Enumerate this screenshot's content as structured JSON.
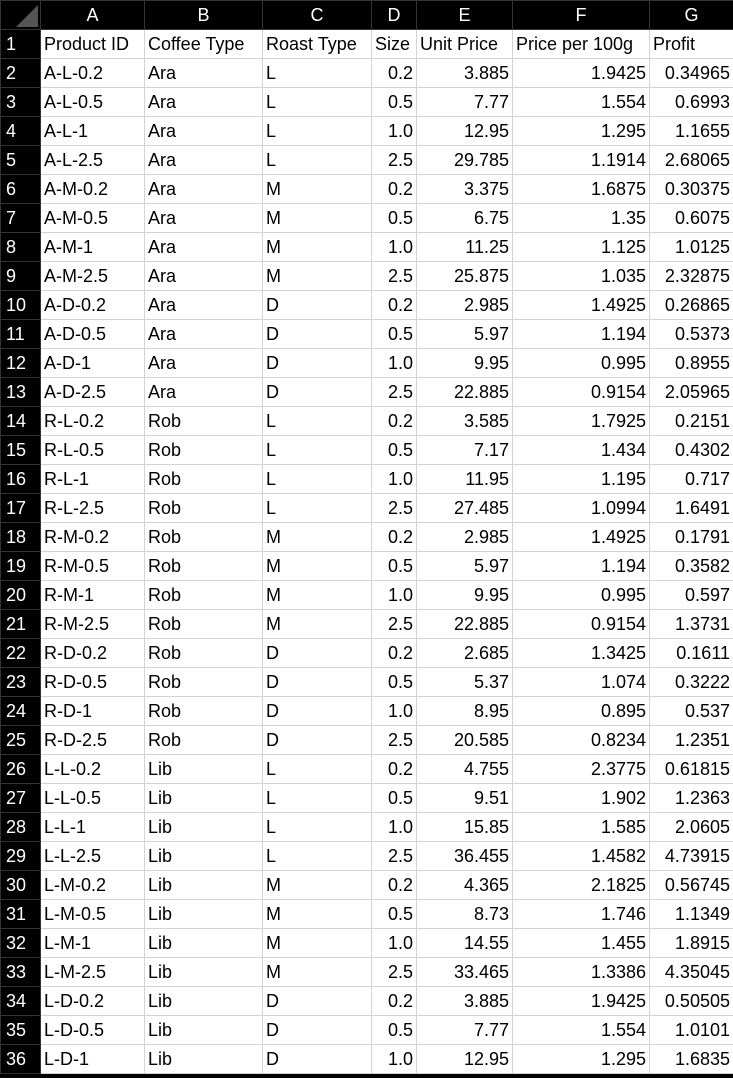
{
  "columns": [
    "A",
    "B",
    "C",
    "D",
    "E",
    "F",
    "G"
  ],
  "rows": [
    [
      "Product ID",
      "Coffee Type",
      "Roast Type",
      "Size",
      "Unit Price",
      "Price per 100g",
      "Profit"
    ],
    [
      "A-L-0.2",
      "Ara",
      "L",
      "0.2",
      "3.885",
      "1.9425",
      "0.34965"
    ],
    [
      "A-L-0.5",
      "Ara",
      "L",
      "0.5",
      "7.77",
      "1.554",
      "0.6993"
    ],
    [
      "A-L-1",
      "Ara",
      "L",
      "1.0",
      "12.95",
      "1.295",
      "1.1655"
    ],
    [
      "A-L-2.5",
      "Ara",
      "L",
      "2.5",
      "29.785",
      "1.1914",
      "2.68065"
    ],
    [
      "A-M-0.2",
      "Ara",
      "M",
      "0.2",
      "3.375",
      "1.6875",
      "0.30375"
    ],
    [
      "A-M-0.5",
      "Ara",
      "M",
      "0.5",
      "6.75",
      "1.35",
      "0.6075"
    ],
    [
      "A-M-1",
      "Ara",
      "M",
      "1.0",
      "11.25",
      "1.125",
      "1.0125"
    ],
    [
      "A-M-2.5",
      "Ara",
      "M",
      "2.5",
      "25.875",
      "1.035",
      "2.32875"
    ],
    [
      "A-D-0.2",
      "Ara",
      "D",
      "0.2",
      "2.985",
      "1.4925",
      "0.26865"
    ],
    [
      "A-D-0.5",
      "Ara",
      "D",
      "0.5",
      "5.97",
      "1.194",
      "0.5373"
    ],
    [
      "A-D-1",
      "Ara",
      "D",
      "1.0",
      "9.95",
      "0.995",
      "0.8955"
    ],
    [
      "A-D-2.5",
      "Ara",
      "D",
      "2.5",
      "22.885",
      "0.9154",
      "2.05965"
    ],
    [
      "R-L-0.2",
      "Rob",
      "L",
      "0.2",
      "3.585",
      "1.7925",
      "0.2151"
    ],
    [
      "R-L-0.5",
      "Rob",
      "L",
      "0.5",
      "7.17",
      "1.434",
      "0.4302"
    ],
    [
      "R-L-1",
      "Rob",
      "L",
      "1.0",
      "11.95",
      "1.195",
      "0.717"
    ],
    [
      "R-L-2.5",
      "Rob",
      "L",
      "2.5",
      "27.485",
      "1.0994",
      "1.6491"
    ],
    [
      "R-M-0.2",
      "Rob",
      "M",
      "0.2",
      "2.985",
      "1.4925",
      "0.1791"
    ],
    [
      "R-M-0.5",
      "Rob",
      "M",
      "0.5",
      "5.97",
      "1.194",
      "0.3582"
    ],
    [
      "R-M-1",
      "Rob",
      "M",
      "1.0",
      "9.95",
      "0.995",
      "0.597"
    ],
    [
      "R-M-2.5",
      "Rob",
      "M",
      "2.5",
      "22.885",
      "0.9154",
      "1.3731"
    ],
    [
      "R-D-0.2",
      "Rob",
      "D",
      "0.2",
      "2.685",
      "1.3425",
      "0.1611"
    ],
    [
      "R-D-0.5",
      "Rob",
      "D",
      "0.5",
      "5.37",
      "1.074",
      "0.3222"
    ],
    [
      "R-D-1",
      "Rob",
      "D",
      "1.0",
      "8.95",
      "0.895",
      "0.537"
    ],
    [
      "R-D-2.5",
      "Rob",
      "D",
      "2.5",
      "20.585",
      "0.8234",
      "1.2351"
    ],
    [
      "L-L-0.2",
      "Lib",
      "L",
      "0.2",
      "4.755",
      "2.3775",
      "0.61815"
    ],
    [
      "L-L-0.5",
      "Lib",
      "L",
      "0.5",
      "9.51",
      "1.902",
      "1.2363"
    ],
    [
      "L-L-1",
      "Lib",
      "L",
      "1.0",
      "15.85",
      "1.585",
      "2.0605"
    ],
    [
      "L-L-2.5",
      "Lib",
      "L",
      "2.5",
      "36.455",
      "1.4582",
      "4.73915"
    ],
    [
      "L-M-0.2",
      "Lib",
      "M",
      "0.2",
      "4.365",
      "2.1825",
      "0.56745"
    ],
    [
      "L-M-0.5",
      "Lib",
      "M",
      "0.5",
      "8.73",
      "1.746",
      "1.1349"
    ],
    [
      "L-M-1",
      "Lib",
      "M",
      "1.0",
      "14.55",
      "1.455",
      "1.8915"
    ],
    [
      "L-M-2.5",
      "Lib",
      "M",
      "2.5",
      "33.465",
      "1.3386",
      "4.35045"
    ],
    [
      "L-D-0.2",
      "Lib",
      "D",
      "0.2",
      "3.885",
      "1.9425",
      "0.50505"
    ],
    [
      "L-D-0.5",
      "Lib",
      "D",
      "0.5",
      "7.77",
      "1.554",
      "1.0101"
    ],
    [
      "L-D-1",
      "Lib",
      "D",
      "1.0",
      "12.95",
      "1.295",
      "1.6835"
    ]
  ]
}
